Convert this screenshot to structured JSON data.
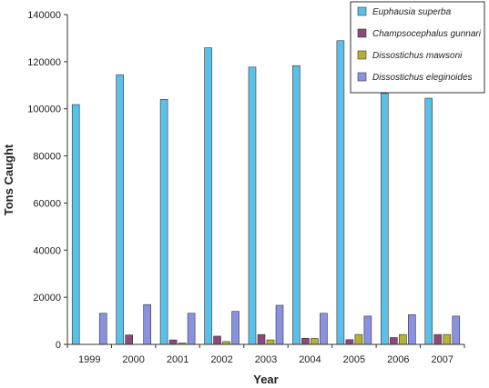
{
  "chart_data": {
    "type": "bar",
    "categories": [
      "1999",
      "2000",
      "2001",
      "2002",
      "2003",
      "2004",
      "2005",
      "2006",
      "2007"
    ],
    "series": [
      {
        "name": "Euphausia superba",
        "color": "#5bc0e8",
        "values": [
          101800,
          114400,
          104000,
          125900,
          117700,
          118300,
          128900,
          106500,
          104500
        ]
      },
      {
        "name": "Champsocephalus gunnari",
        "color": "#8b4a77",
        "values": [
          0,
          4000,
          1900,
          3500,
          4200,
          2600,
          2000,
          2900,
          4200
        ]
      },
      {
        "name": "Dissostichus mawsoni",
        "color": "#b5b231",
        "values": [
          0,
          0,
          600,
          1200,
          1900,
          2500,
          4200,
          4200,
          4200
        ]
      },
      {
        "name": "Dissostichus eleginoides",
        "color": "#8a92e0",
        "values": [
          13200,
          16900,
          13200,
          14000,
          16600,
          13200,
          12000,
          12600,
          12000
        ]
      }
    ],
    "xlabel": "Year",
    "ylabel": "Tons Caught",
    "ylim": [
      0,
      140000
    ],
    "yticks": [
      "0",
      "20000",
      "40000",
      "60000",
      "80000",
      "100000",
      "120000",
      "140000"
    ],
    "legend_position": "top-right",
    "grid": false
  }
}
